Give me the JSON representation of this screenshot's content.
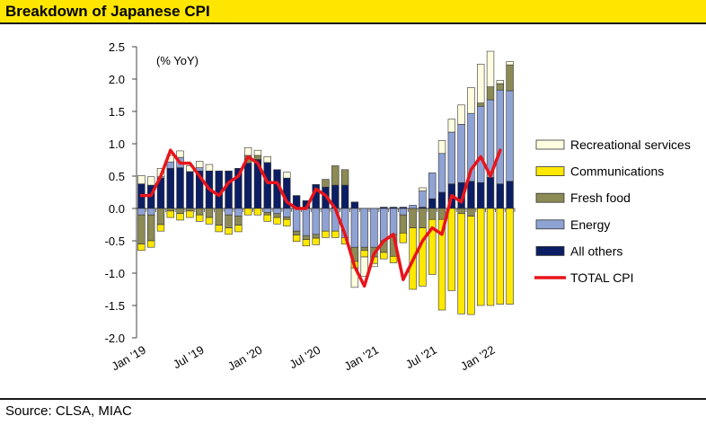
{
  "header": {
    "title": "Breakdown of Japanese CPI"
  },
  "footer": {
    "source": "Source: CLSA, MIAC"
  },
  "colors": {
    "recreational": "#FFFDE0",
    "communications": "#FFE800",
    "fresh_food": "#8C8A55",
    "energy": "#8FA2D4",
    "all_others": "#0C1E63",
    "total": "#E8141C"
  },
  "chart_data": {
    "type": "bar",
    "annotation": "(% YoY)",
    "ylim": [
      -2.0,
      2.5
    ],
    "yticks": [
      "2.5",
      "2.0",
      "1.5",
      "1.0",
      "0.5",
      "0.0",
      "-0.5",
      "-1.0",
      "-1.5",
      "-2.0"
    ],
    "xtick_labels": [
      "Jan '19",
      "Jul '19",
      "Jan '20",
      "Jul '20",
      "Jan '21",
      "Jul '21",
      "Jan '22"
    ],
    "xtick_indices": [
      0,
      6,
      12,
      18,
      24,
      30,
      36
    ],
    "categories": [
      "Jan-19",
      "Feb-19",
      "Mar-19",
      "Apr-19",
      "May-19",
      "Jun-19",
      "Jul-19",
      "Aug-19",
      "Sep-19",
      "Oct-19",
      "Nov-19",
      "Dec-19",
      "Jan-20",
      "Feb-20",
      "Mar-20",
      "Apr-20",
      "May-20",
      "Jun-20",
      "Jul-20",
      "Aug-20",
      "Sep-20",
      "Oct-20",
      "Nov-20",
      "Dec-20",
      "Jan-21",
      "Feb-21",
      "Mar-21",
      "Apr-21",
      "May-21",
      "Jun-21",
      "Jul-21",
      "Aug-21",
      "Sep-21",
      "Oct-21",
      "Nov-21",
      "Dec-21",
      "Jan-22",
      "Feb-22",
      "Mar-22"
    ],
    "legend": [
      "Recreational services",
      "Communications",
      "Fresh food",
      "Energy",
      "All others",
      "TOTAL CPI"
    ],
    "series": [
      {
        "name": "All others",
        "values": [
          0.38,
          0.36,
          0.47,
          0.62,
          0.63,
          0.57,
          0.58,
          0.58,
          0.58,
          0.58,
          0.62,
          0.7,
          0.75,
          0.71,
          0.6,
          0.47,
          0.2,
          0.12,
          0.37,
          0.33,
          0.36,
          0.36,
          0.1,
          0.0,
          0.0,
          0.02,
          0.02,
          0.02,
          0.0,
          0.02,
          0.15,
          0.25,
          0.38,
          0.4,
          0.42,
          0.4,
          0.48,
          0.38,
          0.42
        ]
      },
      {
        "name": "Energy",
        "values": [
          -0.1,
          -0.1,
          0.02,
          0.1,
          0.16,
          0.0,
          0.05,
          0.0,
          0.0,
          -0.1,
          -0.12,
          0.0,
          0.01,
          -0.06,
          -0.08,
          -0.13,
          -0.35,
          -0.42,
          -0.4,
          -0.35,
          -0.35,
          -0.45,
          -0.6,
          -0.6,
          -0.6,
          -0.5,
          -0.4,
          -0.1,
          0.05,
          0.25,
          0.4,
          0.6,
          0.8,
          0.9,
          1.05,
          1.18,
          1.2,
          1.45,
          1.4
        ]
      },
      {
        "name": "Fresh food",
        "values": [
          -0.45,
          -0.4,
          -0.25,
          -0.04,
          -0.08,
          -0.04,
          -0.1,
          -0.14,
          -0.26,
          -0.2,
          -0.14,
          0.12,
          0.06,
          -0.04,
          -0.06,
          -0.04,
          -0.06,
          -0.06,
          -0.06,
          0.12,
          0.3,
          0.24,
          -0.22,
          -0.05,
          -0.15,
          -0.18,
          -0.34,
          -0.28,
          -0.3,
          -0.3,
          -0.17,
          -0.17,
          0.0,
          -0.08,
          -0.12,
          0.05,
          0.2,
          0.1,
          0.4
        ]
      },
      {
        "name": "Communications",
        "values": [
          -0.1,
          -0.1,
          -0.1,
          -0.1,
          -0.1,
          -0.1,
          -0.1,
          -0.1,
          -0.1,
          -0.1,
          -0.1,
          -0.1,
          -0.1,
          -0.1,
          -0.1,
          -0.1,
          -0.1,
          -0.1,
          -0.1,
          -0.1,
          -0.1,
          -0.1,
          -0.1,
          -0.1,
          -0.1,
          -0.1,
          -0.1,
          -0.15,
          -0.95,
          -0.9,
          -0.85,
          -1.4,
          -1.27,
          -1.55,
          -1.52,
          -1.5,
          -1.5,
          -1.48,
          -1.48
        ]
      },
      {
        "name": "Recreational services",
        "values": [
          0.13,
          0.13,
          0.13,
          0.1,
          0.1,
          0.09,
          0.1,
          0.1,
          0.0,
          0.0,
          0.0,
          0.12,
          0.08,
          0.09,
          0.0,
          0.09,
          0.0,
          0.0,
          0.0,
          0.0,
          0.0,
          0.0,
          -0.3,
          -0.3,
          -0.05,
          0.0,
          0.0,
          0.0,
          0.0,
          0.05,
          0.0,
          0.2,
          0.2,
          0.3,
          0.4,
          0.6,
          0.55,
          0.05,
          0.05
        ]
      },
      {
        "name": "TOTAL CPI",
        "values": [
          0.2,
          0.2,
          0.5,
          0.9,
          0.7,
          0.7,
          0.5,
          0.3,
          0.2,
          0.4,
          0.5,
          0.8,
          0.7,
          0.4,
          0.4,
          0.1,
          0.0,
          0.0,
          0.3,
          0.2,
          0.0,
          -0.4,
          -0.9,
          -1.2,
          -0.7,
          -0.5,
          -0.4,
          -1.1,
          -0.8,
          -0.5,
          -0.3,
          -0.4,
          0.2,
          0.1,
          0.6,
          0.8,
          0.5,
          0.9,
          null
        ]
      }
    ]
  }
}
